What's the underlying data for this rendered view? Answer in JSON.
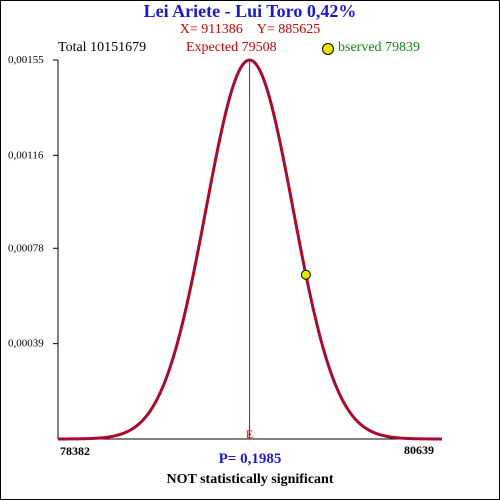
{
  "header": {
    "title": "Lei Ariete - Lui Toro  0,42%",
    "x_label": "X= 911386",
    "y_label": "Y= 885625",
    "total": "Total  10151679",
    "expected": "Expected  79508",
    "observed": "bserved  79839"
  },
  "footer": {
    "p_value": "P= 0,1985",
    "verdict": "NOT statistically significant"
  },
  "colors": {
    "curve": "#cc0000",
    "curve_inner": "#6a1a8a",
    "expected_line": "#cc0000",
    "observed_marker": "#e6e600"
  },
  "chart_data": {
    "type": "line",
    "distribution": "normal",
    "mean": 79508,
    "std": 256,
    "xlim": [
      78382,
      80639
    ],
    "ylim": [
      0,
      0.00155
    ],
    "x_tick_labels": [
      "78382",
      "80639"
    ],
    "y_ticks": [
      0.00039,
      0.00078,
      0.00116,
      0.00155
    ],
    "y_tick_labels": [
      "0,00039",
      "0,00078",
      "0,00116",
      "0,00155"
    ],
    "expected_x": 79508,
    "expected_label": "E",
    "observed_x": 79839,
    "grid": false
  }
}
